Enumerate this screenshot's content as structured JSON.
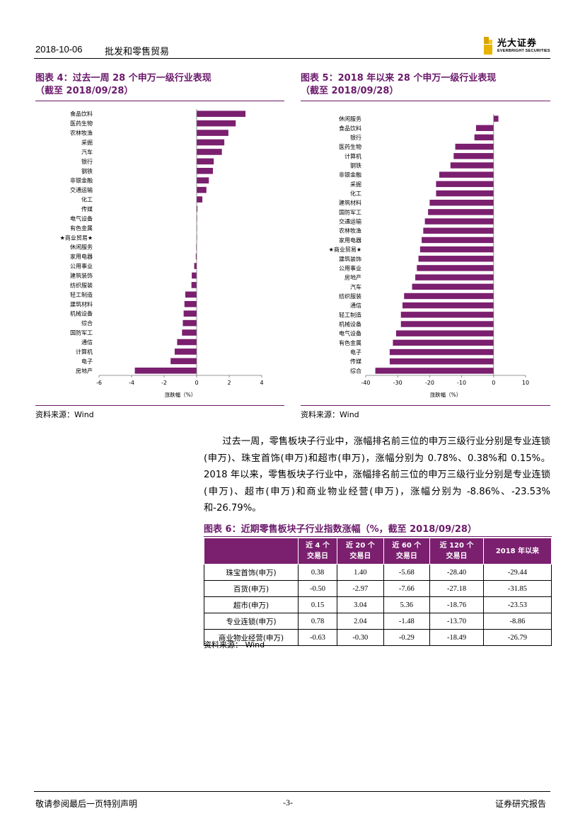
{
  "header": {
    "date": "2018-10-06",
    "sector": "批发和零售贸易",
    "brand_cn": "光大证券",
    "brand_en": "EVERBRIGHT SECURITIES"
  },
  "fig4": {
    "title_line1": "图表 4：过去一周 28 个申万一级行业表现",
    "title_line2": "（截至 2018/09/28）",
    "source": "资料来源：Wind"
  },
  "fig5": {
    "title_line1": "图表 5：2018 年以来 28 个申万一级行业表现",
    "title_line2": "（截至 2018/09/28）",
    "source": "资料来源：Wind"
  },
  "paragraph": "过去一周，零售板块子行业中，涨幅排名前三位的申万三级行业分别是专业连锁(申万)、珠宝首饰(申万)和超市(申万)，涨幅分别为 0.78%、0.38%和 0.15%。2018 年以来，零售板块子行业中，涨幅排名前三位的申万三级行业分别是专业连锁(申万)、超市(申万)和商业物业经营(申万)，涨幅分别为 -8.86%、-23.53%和-26.79%。",
  "table": {
    "title": "图表 6：近期零售板块子行业指数涨幅（%，截至 2018/09/28）",
    "headers": [
      [
        "近 4 个",
        "交易日"
      ],
      [
        "近 20 个",
        "交易日"
      ],
      [
        "近 60 个",
        "交易日"
      ],
      [
        "近 120 个",
        "交易日"
      ],
      [
        "2018 年以来",
        ""
      ]
    ],
    "rows": [
      {
        "name": "珠宝首饰(申万)",
        "values": [
          "0.38",
          "1.40",
          "-5.68",
          "-28.40",
          "-29.44"
        ]
      },
      {
        "name": "百货(申万)",
        "values": [
          "-0.50",
          "-2.97",
          "-7.66",
          "-27.18",
          "-31.85"
        ]
      },
      {
        "name": "超市(申万)",
        "values": [
          "0.15",
          "3.04",
          "5.36",
          "-18.76",
          "-23.53"
        ]
      },
      {
        "name": "专业连锁(申万)",
        "values": [
          "0.78",
          "2.04",
          "-1.48",
          "-13.70",
          "-8.86"
        ]
      },
      {
        "name": "商业物业经营(申万)",
        "values": [
          "-0.63",
          "-0.30",
          "-0.29",
          "-18.49",
          "-26.79"
        ]
      }
    ],
    "source": "资料来源：  Wind"
  },
  "footer": {
    "left": "敬请参阅最后一页特别声明",
    "page": "-3-",
    "right": "证券研究报告"
  },
  "colors": {
    "bar": "#7b1f6f",
    "title": "#6b1a6b",
    "table_header": "#7b1f6f"
  },
  "chart_data": [
    {
      "type": "bar",
      "orientation": "horizontal",
      "xlabel": "涨跌幅（%）",
      "xlim": [
        -6,
        4
      ],
      "xticks": [
        -6,
        -4,
        -2,
        0,
        2,
        4
      ],
      "grid": false,
      "categories": [
        "食品饮料",
        "医药生物",
        "农林牧渔",
        "采掘",
        "汽车",
        "银行",
        "钢铁",
        "非银金融",
        "交通运输",
        "化工",
        "传媒",
        "电气设备",
        "有色金属",
        "★商业贸易★",
        "休闲服务",
        "家用电器",
        "公用事业",
        "建筑装饰",
        "纺织服装",
        "轻工制造",
        "建筑材料",
        "机械设备",
        "综合",
        "国防军工",
        "通信",
        "计算机",
        "电子",
        "房地产"
      ],
      "values": [
        3.0,
        2.4,
        1.95,
        1.7,
        1.55,
        1.05,
        1.0,
        0.75,
        0.6,
        0.35,
        0.05,
        0.03,
        0.02,
        0.01,
        -0.03,
        -0.05,
        -0.15,
        -0.3,
        -0.32,
        -0.7,
        -0.75,
        -0.8,
        -0.85,
        -0.9,
        -1.2,
        -1.35,
        -1.6,
        -3.8
      ]
    },
    {
      "type": "bar",
      "orientation": "horizontal",
      "xlabel": "涨跌幅（%）",
      "xlim": [
        -40,
        10
      ],
      "xticks": [
        -40,
        -30,
        -20,
        -10,
        0,
        10
      ],
      "grid": false,
      "categories": [
        "休闲服务",
        "食品饮料",
        "银行",
        "医药生物",
        "计算机",
        "钢铁",
        "非银金融",
        "采掘",
        "化工",
        "建筑材料",
        "国防军工",
        "交通运输",
        "农林牧渔",
        "家用电器",
        "★商业贸易★",
        "建筑装饰",
        "公用事业",
        "房地产",
        "汽车",
        "纺织服装",
        "通信",
        "轻工制造",
        "机械设备",
        "电气设备",
        "有色金属",
        "电子",
        "传媒",
        "综合"
      ],
      "values": [
        1.5,
        -5.5,
        -6.0,
        -12.0,
        -12.5,
        -13.5,
        -17.0,
        -18.0,
        -18.0,
        -20.0,
        -20.5,
        -21.5,
        -22.0,
        -22.5,
        -23.0,
        -23.5,
        -24.0,
        -24.5,
        -25.5,
        -28.0,
        -28.5,
        -29.0,
        -29.0,
        -30.5,
        -31.5,
        -32.5,
        -32.5,
        -37.0
      ]
    }
  ]
}
